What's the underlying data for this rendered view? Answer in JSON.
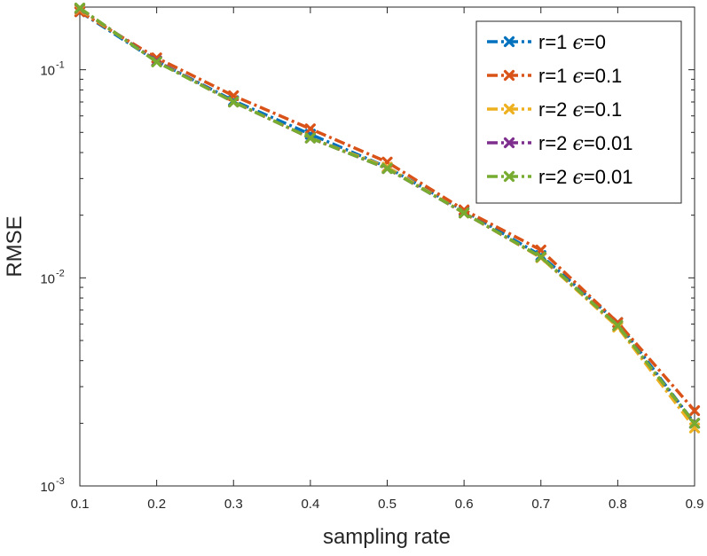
{
  "chart_data": {
    "type": "line",
    "title": "",
    "xlabel": "sampling rate",
    "ylabel": "RMSE",
    "x": [
      0.1,
      0.2,
      0.3,
      0.4,
      0.5,
      0.6,
      0.7,
      0.8,
      0.9
    ],
    "xlim": [
      0.1,
      0.9
    ],
    "ylim": [
      0.001,
      0.2
    ],
    "yscale": "log",
    "xticks": [
      "0.1",
      "0.2",
      "0.3",
      "0.4",
      "0.5",
      "0.6",
      "0.7",
      "0.8",
      "0.9"
    ],
    "yticks": [
      {
        "base": "10",
        "exp": "-1",
        "value": 0.1
      },
      {
        "base": "10",
        "exp": "-2",
        "value": 0.01
      },
      {
        "base": "10",
        "exp": "-3",
        "value": 0.001
      }
    ],
    "legend_position": "top-right",
    "series": [
      {
        "name_prefix": "r=1 ",
        "name_symbol": "ϵ",
        "name_suffix": "=0",
        "color": "#0072BD",
        "values": [
          0.19,
          0.11,
          0.071,
          0.049,
          0.034,
          0.021,
          0.0128,
          0.0061,
          0.002
        ]
      },
      {
        "name_prefix": "r=1 ",
        "name_symbol": "ϵ",
        "name_suffix": "=0.1",
        "color": "#D95319",
        "values": [
          0.19,
          0.114,
          0.075,
          0.052,
          0.036,
          0.0212,
          0.0136,
          0.0061,
          0.0023
        ]
      },
      {
        "name_prefix": "r=2 ",
        "name_symbol": "ϵ",
        "name_suffix": "=0.1",
        "color": "#EDB120",
        "values": [
          0.195,
          0.11,
          0.07,
          0.047,
          0.034,
          0.0205,
          0.0125,
          0.0058,
          0.0019
        ]
      },
      {
        "name_prefix": "r=2 ",
        "name_symbol": "ϵ",
        "name_suffix": "=0.01",
        "color": "#7E2F8E",
        "values": [
          0.197,
          0.11,
          0.07,
          0.047,
          0.0335,
          0.0205,
          0.0126,
          0.0059,
          0.002
        ]
      },
      {
        "name_prefix": "r=2 ",
        "name_symbol": "ϵ",
        "name_suffix": "=0.01",
        "color": "#77AC30",
        "values": [
          0.198,
          0.109,
          0.07,
          0.047,
          0.0335,
          0.0205,
          0.0126,
          0.0059,
          0.002
        ]
      }
    ]
  }
}
